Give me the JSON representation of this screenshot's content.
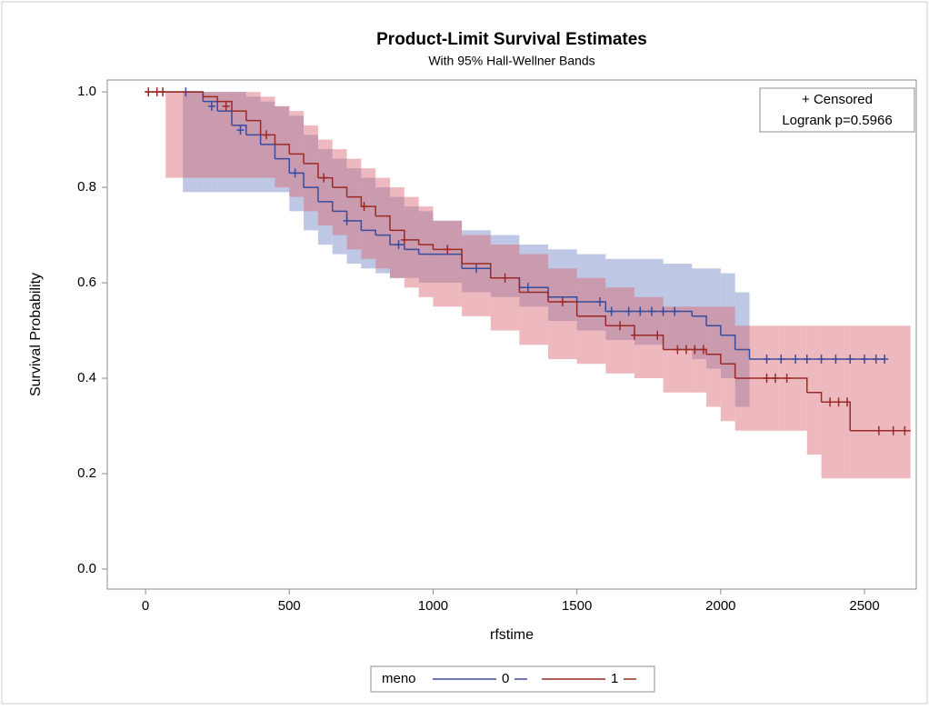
{
  "chart_data": {
    "type": "survival",
    "title": "Product-Limit Survival Estimates",
    "subtitle": "With 95% Hall-Wellner Bands",
    "x_label": "rfstime",
    "y_label": "Survival Probability",
    "inset": [
      "+ Censored",
      "Logrank p=0.5966"
    ],
    "legend_title": "meno",
    "xlim": [
      -133,
      2680
    ],
    "ylim": [
      -0.042,
      1.025
    ],
    "xticks": [
      0,
      500,
      1000,
      1500,
      2000,
      2500
    ],
    "yticks": [
      {
        "value": 0,
        "label": "0.0"
      },
      0.2,
      0.4,
      0.6,
      0.8,
      {
        "value": 1,
        "label": "1.0"
      }
    ],
    "series": [
      {
        "name": "0",
        "color": "#3a4c9c",
        "band_color": "#6f82c2",
        "x": [
          0,
          130,
          200,
          250,
          300,
          350,
          400,
          450,
          500,
          550,
          600,
          650,
          700,
          750,
          800,
          850,
          900,
          950,
          1000,
          1100,
          1200,
          1300,
          1400,
          1500,
          1600,
          1700,
          1800,
          1900,
          1950,
          2000,
          2050,
          2100,
          2570
        ],
        "values": [
          1.0,
          1.0,
          0.98,
          0.96,
          0.93,
          0.91,
          0.89,
          0.86,
          0.83,
          0.8,
          0.77,
          0.75,
          0.73,
          0.71,
          0.7,
          0.68,
          0.67,
          0.66,
          0.66,
          0.63,
          0.61,
          0.59,
          0.57,
          0.56,
          0.54,
          0.54,
          0.54,
          0.53,
          0.51,
          0.49,
          0.46,
          0.44,
          0.44
        ],
        "lower": [
          null,
          0.79,
          0.79,
          0.79,
          0.79,
          0.79,
          0.79,
          0.79,
          0.75,
          0.71,
          0.68,
          0.66,
          0.64,
          0.63,
          0.62,
          0.61,
          0.61,
          0.6,
          0.6,
          0.58,
          0.57,
          0.55,
          0.52,
          0.5,
          0.48,
          0.47,
          0.46,
          0.44,
          0.42,
          0.4,
          0.34,
          null,
          null
        ],
        "upper": [
          null,
          1.0,
          1.0,
          1.0,
          1.0,
          0.99,
          0.98,
          0.97,
          0.95,
          0.91,
          0.88,
          0.86,
          0.84,
          0.82,
          0.8,
          0.78,
          0.76,
          0.75,
          0.73,
          0.71,
          0.7,
          0.68,
          0.67,
          0.66,
          0.65,
          0.65,
          0.64,
          0.63,
          0.63,
          0.62,
          0.58,
          null,
          null
        ],
        "censored": {
          "x": [
            140,
            230,
            330,
            520,
            700,
            880,
            1150,
            1330,
            1580,
            1620,
            1680,
            1720,
            1760,
            1800,
            1840,
            2160,
            2210,
            2260,
            2300,
            2350,
            2400,
            2450,
            2500,
            2540,
            2570
          ],
          "values": [
            1.0,
            0.97,
            0.92,
            0.83,
            0.73,
            0.68,
            0.63,
            0.59,
            0.56,
            0.54,
            0.54,
            0.54,
            0.54,
            0.54,
            0.54,
            0.44,
            0.44,
            0.44,
            0.44,
            0.44,
            0.44,
            0.44,
            0.44,
            0.44,
            0.44
          ]
        }
      },
      {
        "name": "1",
        "color": "#9a2a24",
        "band_color": "#d9646e",
        "x": [
          0,
          70,
          150,
          200,
          250,
          300,
          350,
          400,
          450,
          500,
          550,
          600,
          650,
          700,
          750,
          800,
          850,
          900,
          950,
          1000,
          1100,
          1200,
          1300,
          1400,
          1500,
          1600,
          1700,
          1800,
          1900,
          1950,
          2000,
          2050,
          2100,
          2200,
          2300,
          2350,
          2450,
          2660
        ],
        "values": [
          1.0,
          1.0,
          1.0,
          0.99,
          0.98,
          0.96,
          0.94,
          0.91,
          0.89,
          0.87,
          0.85,
          0.82,
          0.8,
          0.78,
          0.76,
          0.74,
          0.71,
          0.69,
          0.68,
          0.67,
          0.64,
          0.61,
          0.58,
          0.56,
          0.53,
          0.51,
          0.49,
          0.46,
          0.46,
          0.45,
          0.43,
          0.4,
          0.4,
          0.4,
          0.37,
          0.35,
          0.29,
          0.29
        ],
        "lower": [
          null,
          0.82,
          0.82,
          0.82,
          0.82,
          0.82,
          0.82,
          0.82,
          0.8,
          0.78,
          0.75,
          0.72,
          0.7,
          0.67,
          0.65,
          0.63,
          0.61,
          0.59,
          0.57,
          0.55,
          0.53,
          0.5,
          0.47,
          0.44,
          0.43,
          0.41,
          0.4,
          0.37,
          0.37,
          0.34,
          0.31,
          0.29,
          0.29,
          0.29,
          0.24,
          0.19,
          0.19,
          null
        ],
        "upper": [
          null,
          1.0,
          1.0,
          1.0,
          1.0,
          1.0,
          1.0,
          0.99,
          0.97,
          0.96,
          0.93,
          0.9,
          0.88,
          0.86,
          0.84,
          0.82,
          0.8,
          0.78,
          0.76,
          0.73,
          0.7,
          0.68,
          0.66,
          0.63,
          0.61,
          0.59,
          0.57,
          0.55,
          0.55,
          0.55,
          0.55,
          0.51,
          0.51,
          0.51,
          0.51,
          0.51,
          0.51,
          null
        ],
        "censored": {
          "x": [
            10,
            40,
            60,
            280,
            420,
            620,
            760,
            900,
            1050,
            1250,
            1450,
            1650,
            1700,
            1780,
            1850,
            1880,
            1910,
            1940,
            2160,
            2190,
            2230,
            2380,
            2410,
            2440,
            2550,
            2600,
            2640
          ],
          "values": [
            1.0,
            1.0,
            1.0,
            0.97,
            0.91,
            0.82,
            0.76,
            0.69,
            0.67,
            0.61,
            0.56,
            0.51,
            0.49,
            0.49,
            0.46,
            0.46,
            0.46,
            0.46,
            0.4,
            0.4,
            0.4,
            0.35,
            0.35,
            0.35,
            0.29,
            0.29,
            0.29
          ]
        }
      }
    ]
  }
}
